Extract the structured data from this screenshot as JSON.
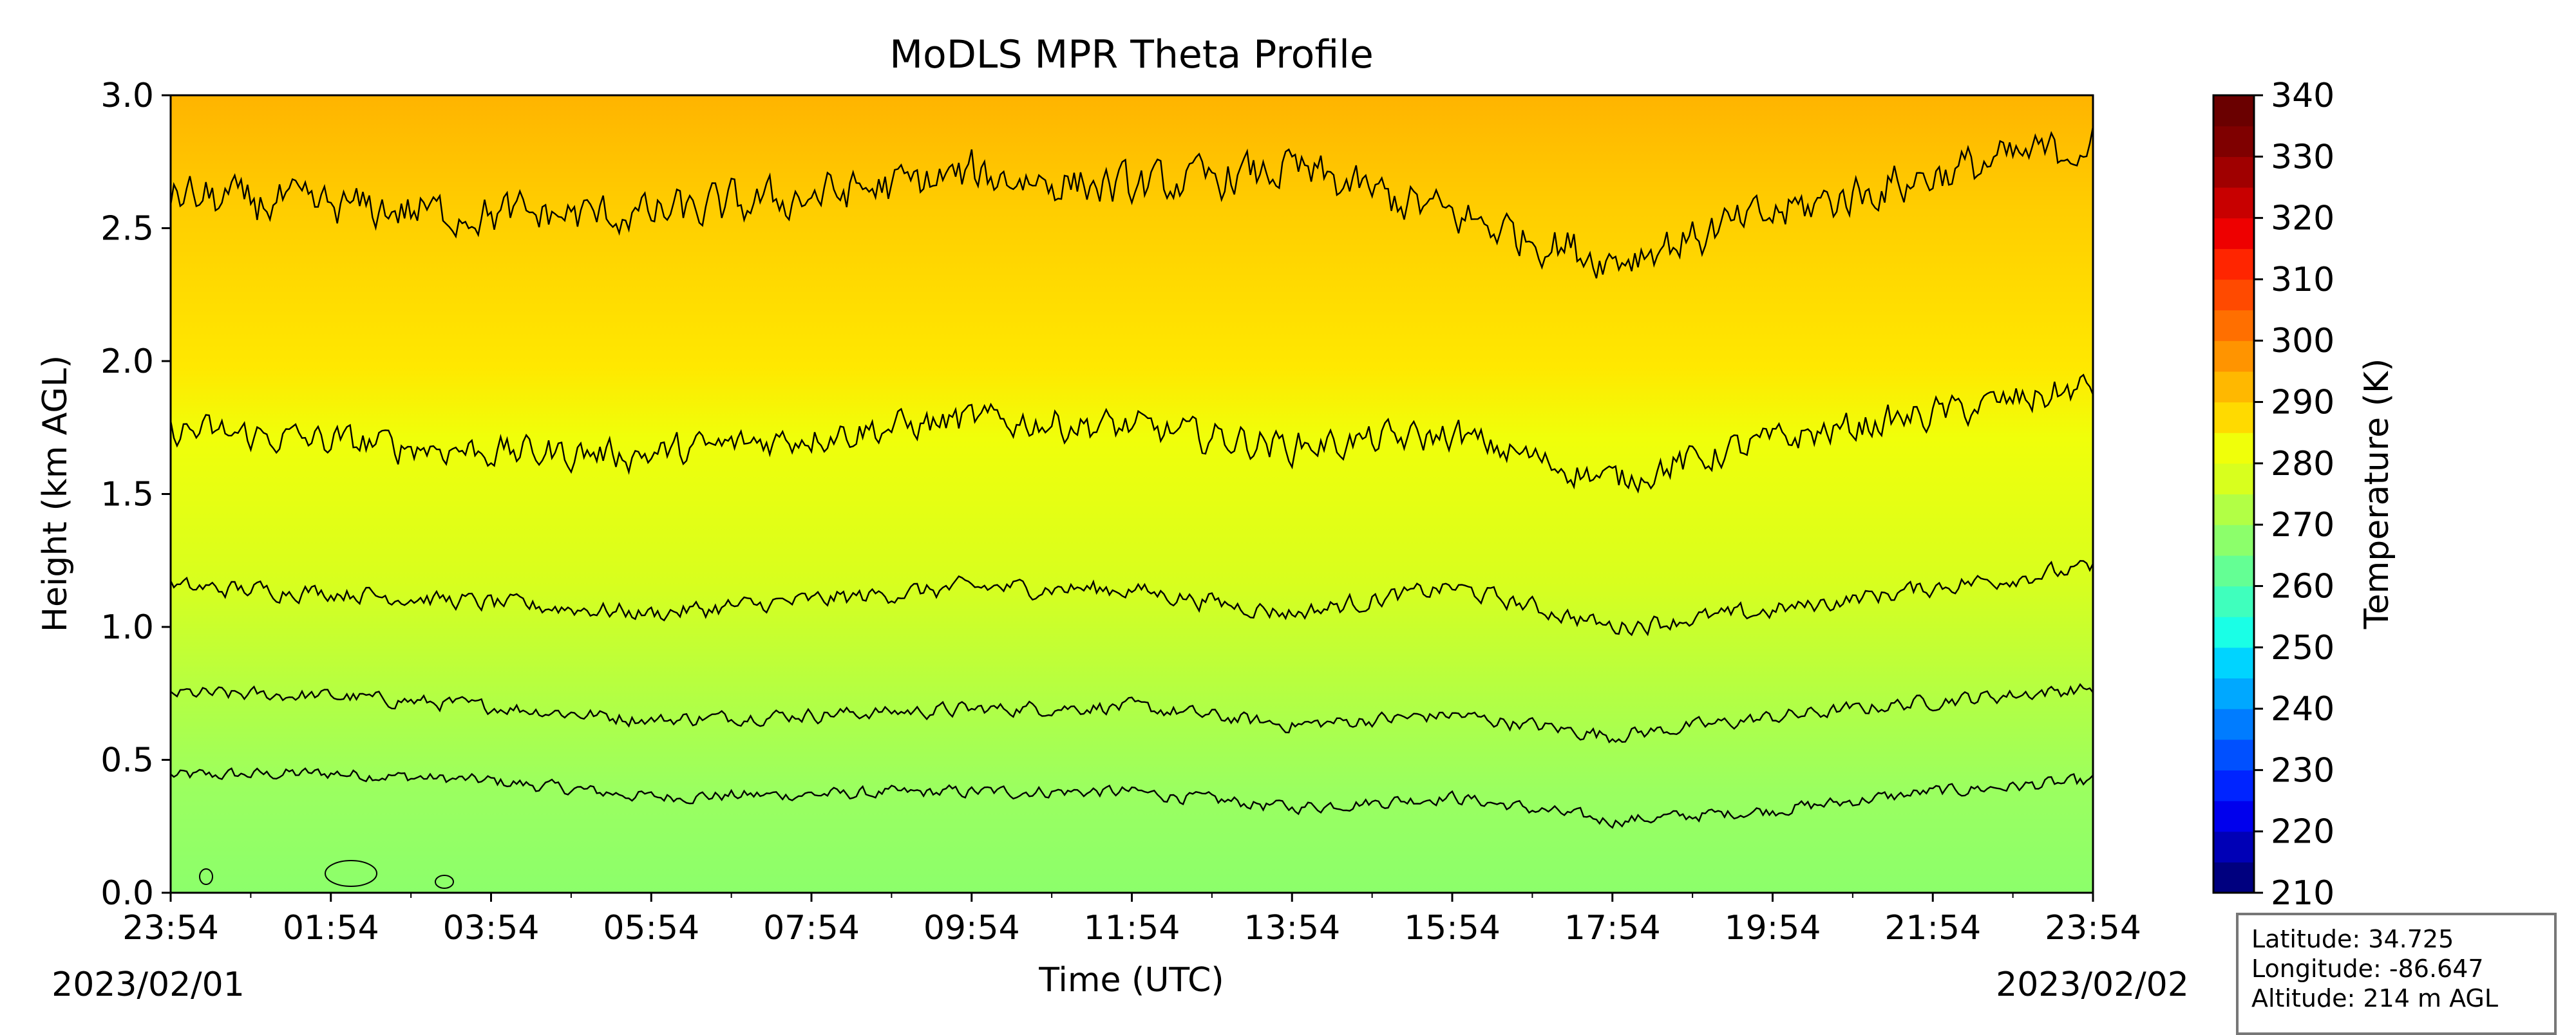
{
  "chart_data": {
    "type": "heatmap",
    "title": "MoDLS MPR Theta Profile",
    "xlabel": "Time (UTC)",
    "ylabel": "Height (km AGL)",
    "ylim": [
      0,
      3.0
    ],
    "y_ticks": [
      "0.0",
      "0.5",
      "1.0",
      "1.5",
      "2.0",
      "2.5",
      "3.0"
    ],
    "x_ticks": [
      "23:54",
      "01:54",
      "03:54",
      "05:54",
      "07:54",
      "09:54",
      "11:54",
      "13:54",
      "15:54",
      "17:54",
      "19:54",
      "21:54",
      "23:54"
    ],
    "x_dates": {
      "start": "2023/02/01",
      "end": "2023/02/02"
    },
    "colorbar": {
      "label": "Temperature (K)",
      "min": 210,
      "max": 340,
      "step": 5,
      "ticks": [
        "210",
        "220",
        "230",
        "240",
        "250",
        "260",
        "270",
        "280",
        "290",
        "300",
        "310",
        "320",
        "330",
        "340"
      ],
      "colors": [
        "#00007f",
        "#0000b6",
        "#0000ed",
        "#0024ff",
        "#0050ff",
        "#007cff",
        "#00a8ff",
        "#00d4ff",
        "#1affe6",
        "#3fffbd",
        "#64ff94",
        "#8cff6b",
        "#b2ff45",
        "#d8ff1e",
        "#f0ff0a",
        "#ffda00",
        "#ffb800",
        "#ff9400",
        "#ff6f00",
        "#ff4a00",
        "#ff2500",
        "#ee0000",
        "#c80000",
        "#a00000",
        "#7f0000",
        "#6a0000"
      ]
    },
    "approx_theta_profile_K": [
      {
        "height_km": 0.0,
        "theta": 279
      },
      {
        "height_km": 0.4,
        "theta": 281
      },
      {
        "height_km": 0.7,
        "theta": 283
      },
      {
        "height_km": 1.15,
        "theta": 287
      },
      {
        "height_km": 1.7,
        "theta": 291
      },
      {
        "height_km": 2.6,
        "theta": 297
      },
      {
        "height_km": 3.0,
        "theta": 300
      }
    ],
    "contour_series": [
      {
        "mean_height_km": [
          0.44,
          0.45,
          0.42,
          0.36,
          0.37,
          0.38,
          0.38,
          0.32,
          0.36,
          0.27,
          0.31,
          0.38,
          0.42
        ]
      },
      {
        "mean_height_km": [
          0.75,
          0.74,
          0.7,
          0.65,
          0.67,
          0.69,
          0.7,
          0.63,
          0.67,
          0.59,
          0.66,
          0.72,
          0.77
        ]
      },
      {
        "mean_height_km": [
          1.15,
          1.13,
          1.09,
          1.05,
          1.1,
          1.15,
          1.14,
          1.05,
          1.15,
          1.0,
          1.06,
          1.15,
          1.22
        ]
      },
      {
        "mean_height_km": [
          1.74,
          1.7,
          1.66,
          1.65,
          1.72,
          1.78,
          1.75,
          1.68,
          1.72,
          1.55,
          1.7,
          1.8,
          1.9
        ]
      },
      {
        "mean_height_km": [
          2.62,
          2.58,
          2.55,
          2.55,
          2.62,
          2.7,
          2.65,
          2.72,
          2.55,
          2.38,
          2.55,
          2.7,
          2.82
        ]
      }
    ]
  },
  "info": {
    "latitude": "Latitude: 34.725",
    "longitude": "Longitude: -86.647",
    "altitude": "Altitude: 214 m AGL"
  }
}
